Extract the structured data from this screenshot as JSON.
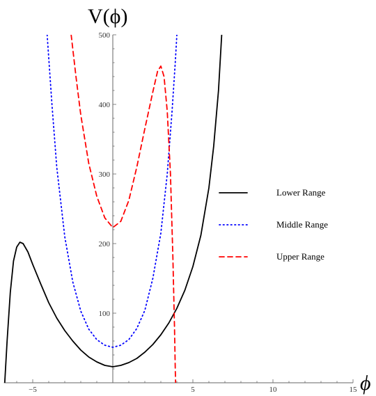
{
  "chart_data": {
    "type": "line",
    "title": "",
    "xlabel": "ϕ",
    "ylabel": "V(ϕ)",
    "xlim": [
      -6.8,
      15
    ],
    "ylim": [
      0,
      500
    ],
    "x_ticks": [
      -5,
      5,
      10,
      15
    ],
    "x_tick_labels": [
      "−5",
      "5",
      "10",
      "15"
    ],
    "y_ticks": [
      100,
      200,
      300,
      400,
      500
    ],
    "y_tick_labels": [
      "100",
      "200",
      "300",
      "400",
      "500"
    ],
    "grid": false,
    "legend_position": "right",
    "series": [
      {
        "name": "Lower Range",
        "color": "#000000",
        "style": "solid",
        "points": [
          [
            -6.75,
            0
          ],
          [
            -6.6,
            60
          ],
          [
            -6.4,
            130
          ],
          [
            -6.2,
            175
          ],
          [
            -6.0,
            195
          ],
          [
            -5.8,
            202
          ],
          [
            -5.6,
            200
          ],
          [
            -5.3,
            188
          ],
          [
            -5.0,
            170
          ],
          [
            -4.5,
            142
          ],
          [
            -4.0,
            115
          ],
          [
            -3.5,
            93
          ],
          [
            -3.0,
            75
          ],
          [
            -2.5,
            60
          ],
          [
            -2.0,
            47
          ],
          [
            -1.5,
            37
          ],
          [
            -1.0,
            30
          ],
          [
            -0.5,
            25
          ],
          [
            0.0,
            23
          ],
          [
            0.5,
            25
          ],
          [
            1.0,
            29
          ],
          [
            1.5,
            35
          ],
          [
            2.0,
            44
          ],
          [
            2.5,
            55
          ],
          [
            3.0,
            69
          ],
          [
            3.5,
            86
          ],
          [
            4.0,
            107
          ],
          [
            4.5,
            133
          ],
          [
            5.0,
            167
          ],
          [
            5.5,
            212
          ],
          [
            6.0,
            280
          ],
          [
            6.3,
            340
          ],
          [
            6.6,
            420
          ],
          [
            6.8,
            500
          ]
        ]
      },
      {
        "name": "Middle Range",
        "color": "#0000ff",
        "style": "dotted",
        "points": [
          [
            -4.1,
            500
          ],
          [
            -3.8,
            400
          ],
          [
            -3.5,
            310
          ],
          [
            -3.0,
            210
          ],
          [
            -2.5,
            145
          ],
          [
            -2.0,
            103
          ],
          [
            -1.5,
            77
          ],
          [
            -1.0,
            62
          ],
          [
            -0.5,
            54
          ],
          [
            0.0,
            51
          ],
          [
            0.5,
            54
          ],
          [
            1.0,
            62
          ],
          [
            1.5,
            78
          ],
          [
            2.0,
            104
          ],
          [
            2.5,
            150
          ],
          [
            3.0,
            215
          ],
          [
            3.4,
            300
          ],
          [
            3.7,
            390
          ],
          [
            3.9,
            460
          ],
          [
            4.0,
            500
          ]
        ]
      },
      {
        "name": "Upper Range",
        "color": "#ff0000",
        "style": "dashed",
        "points": [
          [
            -2.6,
            500
          ],
          [
            -2.3,
            440
          ],
          [
            -2.0,
            385
          ],
          [
            -1.5,
            315
          ],
          [
            -1.0,
            268
          ],
          [
            -0.5,
            237
          ],
          [
            0.0,
            223
          ],
          [
            0.5,
            232
          ],
          [
            1.0,
            262
          ],
          [
            1.5,
            310
          ],
          [
            2.0,
            365
          ],
          [
            2.5,
            418
          ],
          [
            2.8,
            448
          ],
          [
            3.0,
            455
          ],
          [
            3.2,
            440
          ],
          [
            3.4,
            390
          ],
          [
            3.6,
            300
          ],
          [
            3.75,
            180
          ],
          [
            3.85,
            80
          ],
          [
            3.9,
            20
          ],
          [
            3.92,
            0
          ]
        ]
      }
    ]
  }
}
